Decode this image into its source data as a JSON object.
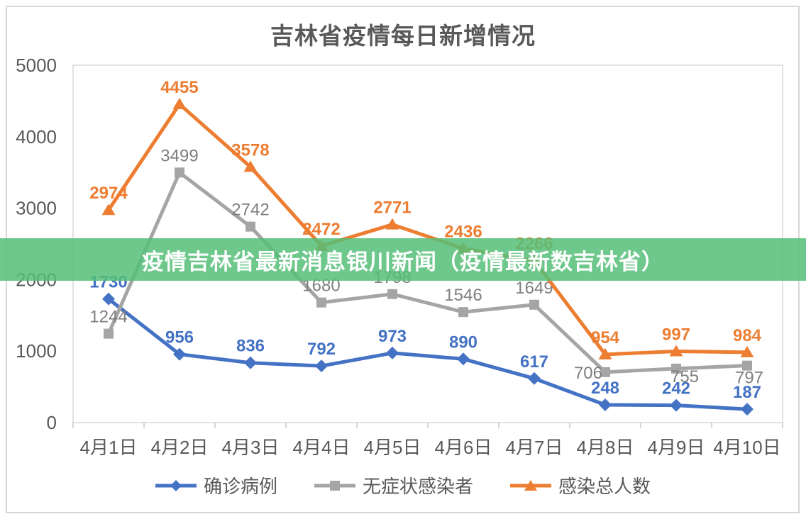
{
  "banner": {
    "text": "疫情吉林省最新消息银川新闻（疫情最新数吉林省）",
    "bg_color": "#55BE78",
    "text_color": "#FFFFFF"
  },
  "chart_data": {
    "type": "line",
    "title": "吉林省疫情每日新增情况",
    "categories": [
      "4月1日",
      "4月2日",
      "4月3日",
      "4月4日",
      "4月5日",
      "4月6日",
      "4月7日",
      "4月8日",
      "4月9日",
      "4月10日"
    ],
    "series": [
      {
        "name": "确诊病例",
        "marker": "diamond",
        "color": "#4472C4",
        "label_color": "#4472C4",
        "label_bold": true,
        "values": [
          1730,
          956,
          836,
          792,
          973,
          890,
          617,
          248,
          242,
          187
        ]
      },
      {
        "name": "无症状感染者",
        "marker": "square",
        "color": "#A5A5A5",
        "label_color": "#7F7F7F",
        "label_bold": false,
        "values": [
          1244,
          3499,
          2742,
          1680,
          1798,
          1546,
          1649,
          706,
          755,
          797
        ]
      },
      {
        "name": "感染总人数",
        "marker": "triangle",
        "color": "#ED7D31",
        "label_color": "#ED7D31",
        "label_bold": true,
        "values": [
          2974,
          4455,
          3578,
          2472,
          2771,
          2436,
          2266,
          954,
          997,
          984
        ]
      }
    ],
    "ylim": [
      0,
      5000
    ],
    "yticks": [
      0,
      1000,
      2000,
      3000,
      4000,
      5000
    ],
    "grid": false,
    "legend_position": "bottom",
    "axis_label_color": "#595959",
    "axis_line_color": "#D9D9D9"
  }
}
